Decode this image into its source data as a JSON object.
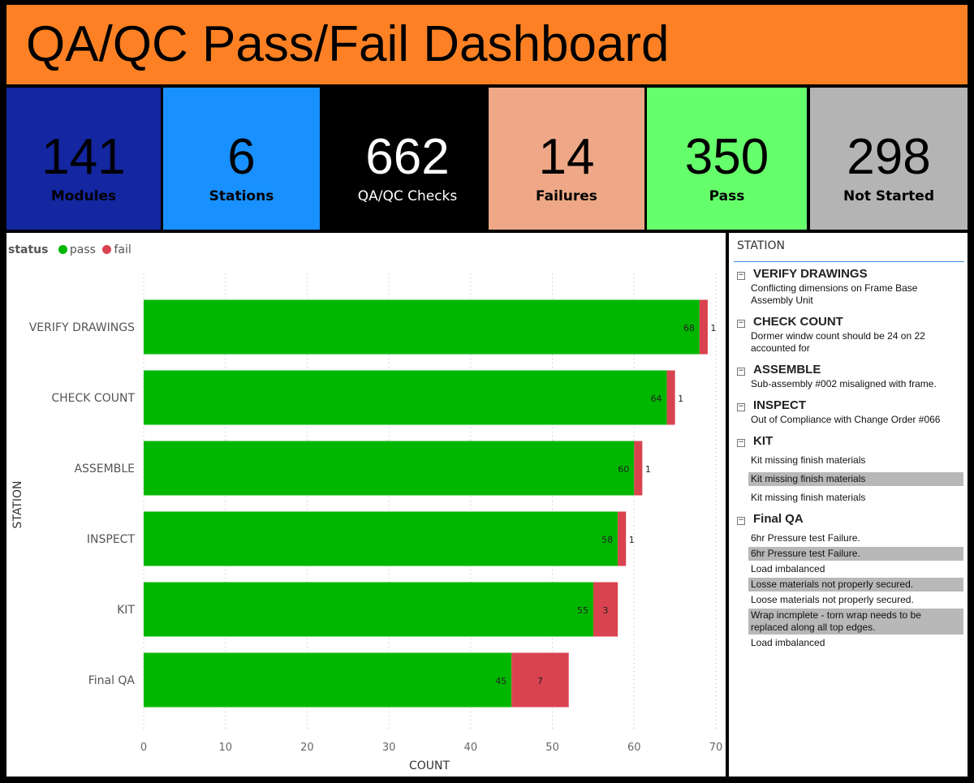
{
  "title": "QA/QC Pass/Fail Dashboard",
  "cards": [
    {
      "value": "141",
      "label": "Modules",
      "bg": "#1426a0",
      "fg": "#000"
    },
    {
      "value": "6",
      "label": "Stations",
      "bg": "#1890ff",
      "fg": "#000"
    },
    {
      "value": "662",
      "label": "QA/QC Checks",
      "bg": "#000000",
      "fg": "#fff"
    },
    {
      "value": "14",
      "label": "Failures",
      "bg": "#eea887",
      "fg": "#000"
    },
    {
      "value": "350",
      "label": "Pass",
      "bg": "#66ff6c",
      "fg": "#000"
    },
    {
      "value": "298",
      "label": "Not Started",
      "bg": "#b4b4b4",
      "fg": "#000"
    }
  ],
  "legend": {
    "title": "status",
    "items": [
      "pass",
      "fail"
    ]
  },
  "chart_data": {
    "type": "bar",
    "orientation": "horizontal",
    "stacked": true,
    "categories": [
      "VERIFY DRAWINGS",
      "CHECK COUNT",
      "ASSEMBLE",
      "INSPECT",
      "KIT",
      "Final QA"
    ],
    "series": [
      {
        "name": "pass",
        "color": "#00b700",
        "values": [
          68,
          64,
          60,
          58,
          55,
          45
        ]
      },
      {
        "name": "fail",
        "color": "#d9434f",
        "values": [
          1,
          1,
          1,
          1,
          3,
          7
        ]
      }
    ],
    "xlabel": "COUNT",
    "ylabel": "STATION",
    "xlim": [
      0,
      70
    ],
    "xticks": [
      0,
      10,
      20,
      30,
      40,
      50,
      60,
      70
    ],
    "grid": true,
    "legend": "top-left"
  },
  "slicer": {
    "header": "STATION",
    "groups": [
      {
        "name": "VERIFY DRAWINGS",
        "items": [
          {
            "text": "Conflicting dimensions on Frame Base Assembly Unit"
          }
        ]
      },
      {
        "name": "CHECK COUNT",
        "items": [
          {
            "text": "Dormer windw count should be 24 on 22 accounted for"
          }
        ]
      },
      {
        "name": "ASSEMBLE",
        "items": [
          {
            "text": "Sub-assembly #002 misaligned with frame."
          }
        ]
      },
      {
        "name": "INSPECT",
        "items": [
          {
            "text": "Out of Compliance with Change Order #066"
          }
        ]
      },
      {
        "name": "KIT",
        "items": [
          {
            "text": "Kit missing finish materials"
          },
          {
            "text": "Kit missing finish materials",
            "selected": true
          },
          {
            "text": "Kit missing finish materials"
          }
        ]
      },
      {
        "name": "Final QA",
        "items": [
          {
            "text": "6hr Pressure test Failure."
          },
          {
            "text": "6hr Pressure test Failure.",
            "selected": true
          },
          {
            "text": "Load imbalanced"
          },
          {
            "text": "Losse materials not properly secured.",
            "selected": true
          },
          {
            "text": "Loose materials not properly secured."
          },
          {
            "text": "Wrap incmplete - torn wrap needs to be replaced along all top edges.",
            "selected": true
          },
          {
            "text": "Load imbalanced"
          }
        ]
      }
    ]
  }
}
